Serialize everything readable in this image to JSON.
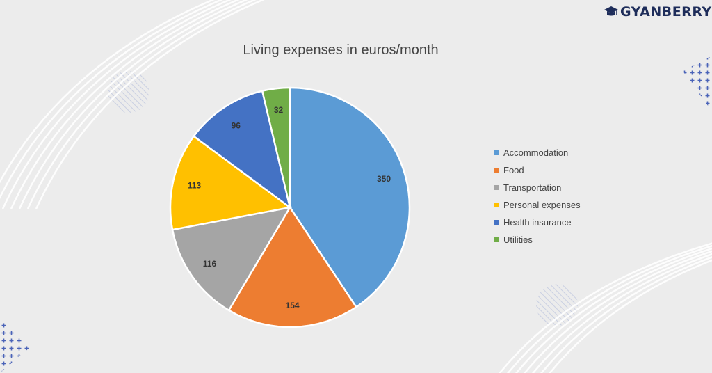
{
  "brand": {
    "name": "GYANBERRY",
    "color": "#1e2d5a",
    "icon": "graduation-cap-icon"
  },
  "background": {
    "color": "#ececec",
    "decor_color": "#c9cfe2",
    "line_color": "#ffffff"
  },
  "chart_data": {
    "type": "pie",
    "title": "Living expenses in euros/month",
    "categories": [
      "Accommodation",
      "Food",
      "Transportation",
      "Personal expenses",
      "Health insurance",
      "Utilities"
    ],
    "values": [
      350,
      154,
      116,
      113,
      96,
      32
    ],
    "colors": [
      "#5b9bd5",
      "#ed7d31",
      "#a5a5a5",
      "#ffc000",
      "#4472c4",
      "#70ad47"
    ],
    "data_labels": true,
    "legend": "right",
    "start": "top, clockwise"
  }
}
